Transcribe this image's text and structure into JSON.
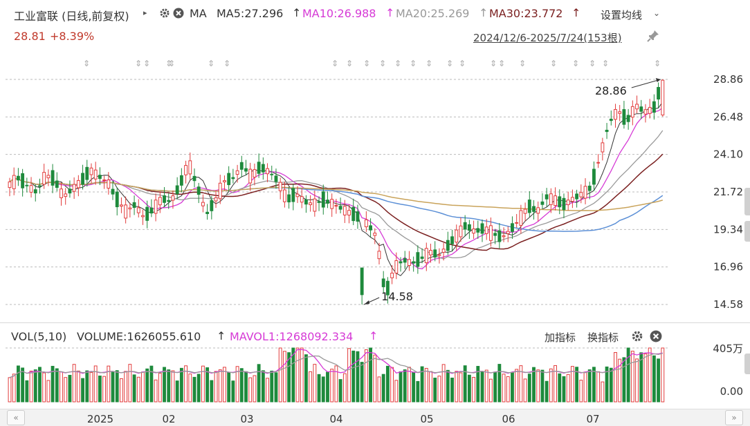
{
  "header": {
    "stock_title": "工业富联 (日线,前复权)",
    "ma_label": "MA",
    "ma5": "MA5:27.296",
    "ma10": "MA10:26.988",
    "ma20": "MA20:25.269",
    "ma30": "MA30:23.772",
    "settings_label": "设置均线",
    "price": "28.81",
    "change": "+8.39%",
    "range": "2024/12/6-2025/7/24(153根)"
  },
  "volume_header": {
    "vol_label": "VOL(5,10)",
    "volume": "VOLUME:1626055.610",
    "mavol": "MAVOL1:1268092.334",
    "add_indicator": "加指标",
    "switch_indicator": "换指标"
  },
  "colors": {
    "up": "#e23b3b",
    "down": "#1e8a3c",
    "ma5": "#333333",
    "ma10": "#d63ad6",
    "ma20": "#999999",
    "ma30": "#7a1f1f",
    "ma_long1": "#c9a35a",
    "ma_long2": "#5b8fd6",
    "title_red": "#c0392b"
  },
  "chart_data": {
    "type": "candlestick",
    "price_axis_ticks": [
      "28.86",
      "26.48",
      "24.10",
      "21.72",
      "19.34",
      "16.96",
      "14.58"
    ],
    "volume_axis_ticks": [
      "405万",
      "0.00"
    ],
    "x_tick_labels": [
      "2025",
      "02",
      "03",
      "04",
      "05",
      "06",
      "07"
    ],
    "annotations": {
      "high": "28.86",
      "low": "14.58"
    },
    "ylim": [
      14.58,
      28.86
    ],
    "ohlc_sample": [
      {
        "o": 22.5,
        "h": 23.0,
        "l": 21.9,
        "c": 22.2
      },
      {
        "o": 22.2,
        "h": 22.8,
        "l": 21.8,
        "c": 22.6
      },
      {
        "o": 22.6,
        "h": 23.1,
        "l": 22.0,
        "c": 22.1
      },
      {
        "o": 22.1,
        "h": 22.4,
        "l": 21.5,
        "c": 21.7
      },
      {
        "o": 21.7,
        "h": 22.9,
        "l": 21.6,
        "c": 22.8
      },
      {
        "o": 22.8,
        "h": 23.2,
        "l": 22.3,
        "c": 22.5
      },
      {
        "o": 22.5,
        "h": 22.7,
        "l": 21.3,
        "c": 21.4
      },
      {
        "o": 21.4,
        "h": 22.0,
        "l": 21.2,
        "c": 21.9
      },
      {
        "o": 21.9,
        "h": 22.6,
        "l": 21.7,
        "c": 22.4
      },
      {
        "o": 22.4,
        "h": 23.3,
        "l": 22.2,
        "c": 23.1
      },
      {
        "o": 23.1,
        "h": 23.4,
        "l": 22.5,
        "c": 22.7
      },
      {
        "o": 22.7,
        "h": 23.0,
        "l": 22.0,
        "c": 22.3
      },
      {
        "o": 22.3,
        "h": 22.5,
        "l": 21.0,
        "c": 21.2
      },
      {
        "o": 21.2,
        "h": 21.6,
        "l": 20.3,
        "c": 20.5
      },
      {
        "o": 20.5,
        "h": 21.2,
        "l": 20.0,
        "c": 20.9
      },
      {
        "o": 20.9,
        "h": 21.3,
        "l": 19.9,
        "c": 20.1
      },
      {
        "o": 20.1,
        "h": 20.8,
        "l": 19.6,
        "c": 20.6
      },
      {
        "o": 20.6,
        "h": 21.5,
        "l": 20.4,
        "c": 21.3
      },
      {
        "o": 21.3,
        "h": 21.8,
        "l": 20.9,
        "c": 21.1
      },
      {
        "o": 21.1,
        "h": 22.3,
        "l": 21.0,
        "c": 22.1
      },
      {
        "o": 22.1,
        "h": 24.4,
        "l": 22.0,
        "c": 23.6
      },
      {
        "o": 23.6,
        "h": 24.0,
        "l": 21.8,
        "c": 22.0
      },
      {
        "o": 22.0,
        "h": 22.4,
        "l": 20.0,
        "c": 20.3
      },
      {
        "o": 20.3,
        "h": 21.4,
        "l": 20.1,
        "c": 21.2
      },
      {
        "o": 21.2,
        "h": 22.6,
        "l": 21.0,
        "c": 22.4
      },
      {
        "o": 22.4,
        "h": 23.2,
        "l": 22.1,
        "c": 22.6
      },
      {
        "o": 22.6,
        "h": 23.7,
        "l": 22.4,
        "c": 23.4
      },
      {
        "o": 23.4,
        "h": 23.8,
        "l": 22.5,
        "c": 22.7
      },
      {
        "o": 22.7,
        "h": 23.5,
        "l": 22.3,
        "c": 23.3
      },
      {
        "o": 23.3,
        "h": 23.9,
        "l": 22.8,
        "c": 23.0
      },
      {
        "o": 23.0,
        "h": 23.2,
        "l": 22.2,
        "c": 22.4
      },
      {
        "o": 22.4,
        "h": 22.6,
        "l": 21.0,
        "c": 21.2
      },
      {
        "o": 21.2,
        "h": 21.8,
        "l": 20.8,
        "c": 21.6
      },
      {
        "o": 21.6,
        "h": 21.9,
        "l": 20.9,
        "c": 21.1
      },
      {
        "o": 21.1,
        "h": 21.5,
        "l": 20.7,
        "c": 20.9
      },
      {
        "o": 20.9,
        "h": 21.4,
        "l": 20.6,
        "c": 21.2
      },
      {
        "o": 21.2,
        "h": 21.6,
        "l": 20.8,
        "c": 21.0
      },
      {
        "o": 21.0,
        "h": 21.3,
        "l": 20.5,
        "c": 20.7
      },
      {
        "o": 20.7,
        "h": 21.0,
        "l": 20.2,
        "c": 20.4
      },
      {
        "o": 20.4,
        "h": 20.8,
        "l": 19.9,
        "c": 20.1
      },
      {
        "o": 20.1,
        "h": 20.4,
        "l": 19.5,
        "c": 19.7
      },
      {
        "o": 19.7,
        "h": 20.0,
        "l": 18.7,
        "c": 18.9
      },
      {
        "o": 16.9,
        "h": 16.9,
        "l": 14.58,
        "c": 15.1
      },
      {
        "o": 15.1,
        "h": 17.2,
        "l": 14.9,
        "c": 16.9
      },
      {
        "o": 16.9,
        "h": 17.6,
        "l": 16.6,
        "c": 17.4
      },
      {
        "o": 17.4,
        "h": 17.8,
        "l": 17.0,
        "c": 17.2
      },
      {
        "o": 17.2,
        "h": 17.6,
        "l": 16.9,
        "c": 17.5
      },
      {
        "o": 17.5,
        "h": 18.0,
        "l": 17.3,
        "c": 17.9
      },
      {
        "o": 17.9,
        "h": 18.2,
        "l": 17.5,
        "c": 17.7
      },
      {
        "o": 17.7,
        "h": 18.4,
        "l": 17.6,
        "c": 18.3
      },
      {
        "o": 18.3,
        "h": 19.2,
        "l": 18.1,
        "c": 19.0
      },
      {
        "o": 19.0,
        "h": 19.8,
        "l": 18.8,
        "c": 19.6
      },
      {
        "o": 19.6,
        "h": 19.9,
        "l": 19.0,
        "c": 19.2
      },
      {
        "o": 19.2,
        "h": 19.6,
        "l": 18.9,
        "c": 19.4
      },
      {
        "o": 19.4,
        "h": 19.7,
        "l": 19.0,
        "c": 19.1
      },
      {
        "o": 19.1,
        "h": 19.4,
        "l": 18.6,
        "c": 18.8
      },
      {
        "o": 18.8,
        "h": 19.4,
        "l": 18.7,
        "c": 19.3
      },
      {
        "o": 19.3,
        "h": 20.1,
        "l": 19.2,
        "c": 20.0
      },
      {
        "o": 20.0,
        "h": 21.1,
        "l": 19.8,
        "c": 20.8
      },
      {
        "o": 20.8,
        "h": 21.2,
        "l": 20.3,
        "c": 20.5
      },
      {
        "o": 20.5,
        "h": 21.6,
        "l": 20.4,
        "c": 21.4
      },
      {
        "o": 21.4,
        "h": 22.0,
        "l": 21.0,
        "c": 21.2
      },
      {
        "o": 21.2,
        "h": 21.6,
        "l": 20.7,
        "c": 20.9
      },
      {
        "o": 20.9,
        "h": 21.5,
        "l": 20.8,
        "c": 21.3
      },
      {
        "o": 21.3,
        "h": 21.8,
        "l": 21.0,
        "c": 21.6
      },
      {
        "o": 21.6,
        "h": 22.2,
        "l": 21.4,
        "c": 22.0
      },
      {
        "o": 22.0,
        "h": 24.2,
        "l": 21.9,
        "c": 24.0
      },
      {
        "o": 24.0,
        "h": 26.4,
        "l": 23.8,
        "c": 26.1
      },
      {
        "o": 26.1,
        "h": 27.1,
        "l": 25.8,
        "c": 26.9
      },
      {
        "o": 26.9,
        "h": 27.1,
        "l": 25.9,
        "c": 26.2
      },
      {
        "o": 26.2,
        "h": 27.4,
        "l": 26.0,
        "c": 27.2
      },
      {
        "o": 27.2,
        "h": 27.6,
        "l": 26.5,
        "c": 26.8
      },
      {
        "o": 26.8,
        "h": 28.3,
        "l": 26.6,
        "c": 27.0
      },
      {
        "o": 26.6,
        "h": 28.86,
        "l": 26.5,
        "c": 28.81
      }
    ]
  }
}
